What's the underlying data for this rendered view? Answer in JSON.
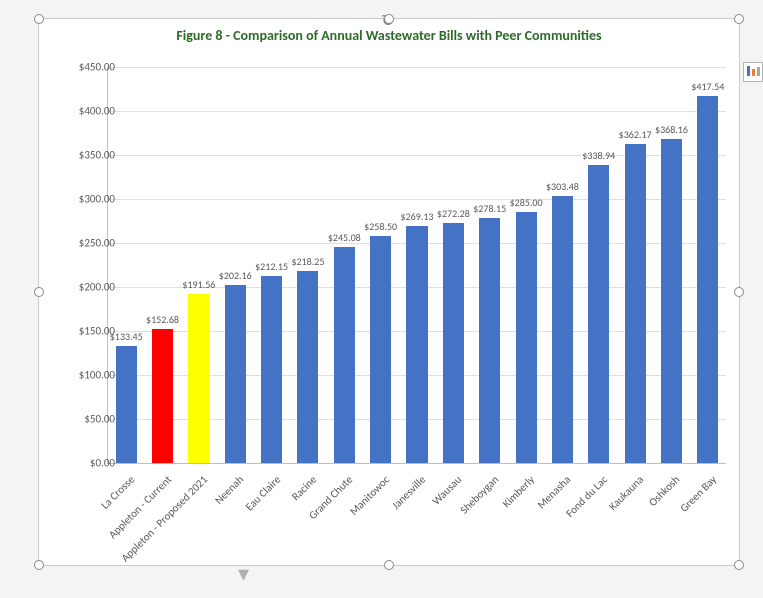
{
  "chart": {
    "title": "Figure 8 - Comparison of Annual Wastewater Bills with Peer Communities",
    "title_color": "#2d6b28",
    "title_fontsize": 14,
    "type": "bar",
    "background_color": "#ffffff",
    "grid_color": "#e0e0e0",
    "axis_color": "#bfbfbf",
    "tick_font_color": "#595959",
    "tick_fontsize": 11,
    "datalabel_fontsize": 10,
    "ylim": [
      0,
      450
    ],
    "ytick_step": 50,
    "ytick_prefix": "$",
    "ytick_decimals": 2,
    "bar_width_ratio": 0.58,
    "categories": [
      "La Crosse",
      "Appleton - Current",
      "Appleton - Proposed 2021",
      "Neenah",
      "Eau Claire",
      "Racine",
      "Grand Chute",
      "Manitowoc",
      "Janesville",
      "Wausau",
      "Sheboygan",
      "Kimberly",
      "Menasha",
      "Fond du Lac",
      "Kaukauna",
      "Oshkosh",
      "Green Bay"
    ],
    "values": [
      133.45,
      152.68,
      191.56,
      202.16,
      212.15,
      218.25,
      245.08,
      258.5,
      269.13,
      272.28,
      278.15,
      285.0,
      303.48,
      338.94,
      362.17,
      368.16,
      417.54
    ],
    "bar_colors": [
      "#4472c4",
      "#ff0000",
      "#ffff00",
      "#4472c4",
      "#4472c4",
      "#4472c4",
      "#4472c4",
      "#4472c4",
      "#4472c4",
      "#4472c4",
      "#4472c4",
      "#4472c4",
      "#4472c4",
      "#4472c4",
      "#4472c4",
      "#4472c4",
      "#4472c4"
    ],
    "value_label_prefix": "$",
    "value_label_decimals": 2
  },
  "editor": {
    "selection_handles": true,
    "rotate_icon": "↻",
    "side_button_icon": "chart-filter-icon"
  }
}
